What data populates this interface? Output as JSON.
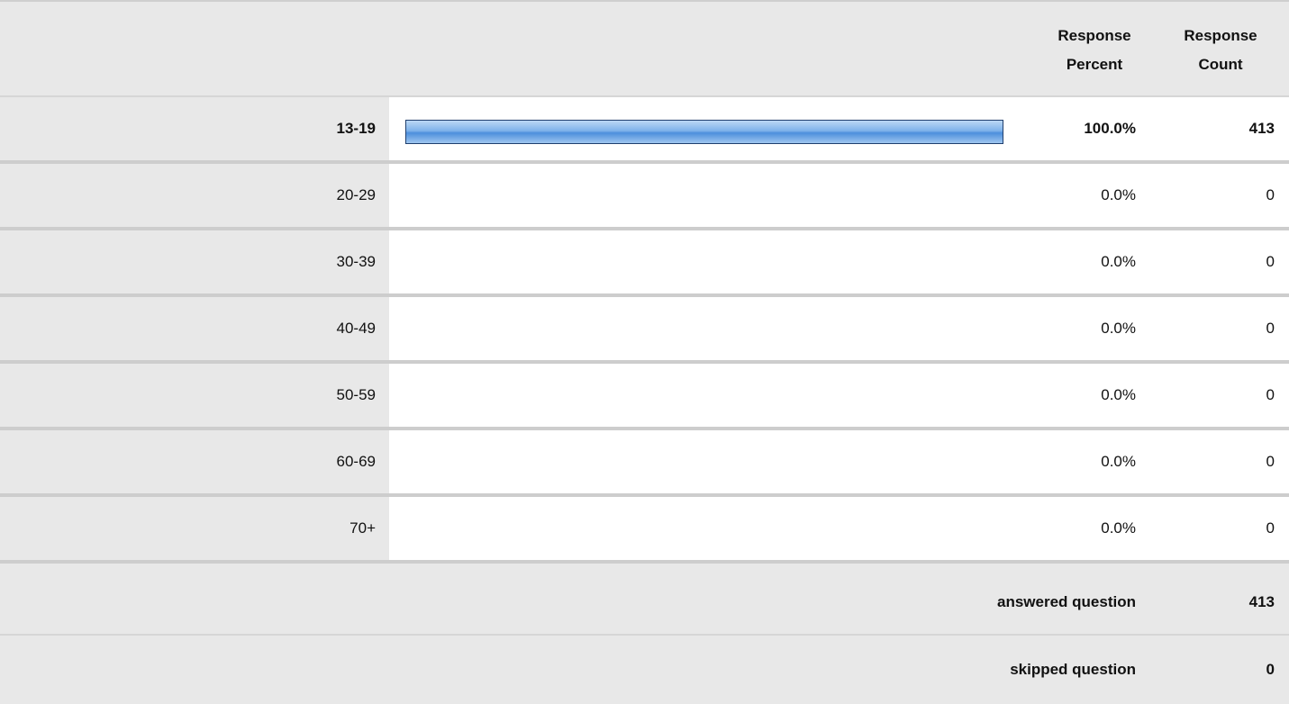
{
  "table": {
    "header": {
      "percent": "Response Percent",
      "count": "Response Count"
    },
    "rows": [
      {
        "label": "13-19",
        "percent": {
          "value": 100,
          "label": "100.0%"
        },
        "count": 413
      },
      {
        "label": "20-29",
        "percent": {
          "value": 0,
          "label": "0.0%"
        },
        "count": 0
      },
      {
        "label": "30-39",
        "percent": {
          "value": 0,
          "label": "0.0%"
        },
        "count": 0
      },
      {
        "label": "40-49",
        "percent": {
          "value": 0,
          "label": "0.0%"
        },
        "count": 0
      },
      {
        "label": "50-59",
        "percent": {
          "value": 0,
          "label": "0.0%"
        },
        "count": 0
      },
      {
        "label": "60-69",
        "percent": {
          "value": 0,
          "label": "0.0%"
        },
        "count": 0
      },
      {
        "label": "70+",
        "percent": {
          "value": 0,
          "label": "0.0%"
        },
        "count": 0
      }
    ],
    "answered": {
      "label": "answered question",
      "count": 413
    },
    "skipped": {
      "label": "skipped question",
      "count": 0
    }
  }
}
